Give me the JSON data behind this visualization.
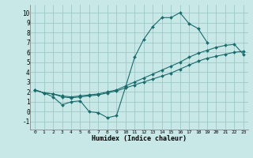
{
  "title": "",
  "xlabel": "Humidex (Indice chaleur)",
  "ylabel": "",
  "xlim": [
    -0.5,
    23.5
  ],
  "ylim": [
    -1.8,
    10.8
  ],
  "xticks": [
    0,
    1,
    2,
    3,
    4,
    5,
    6,
    7,
    8,
    9,
    10,
    11,
    12,
    13,
    14,
    15,
    16,
    17,
    18,
    19,
    20,
    21,
    22,
    23
  ],
  "yticks": [
    -1,
    0,
    1,
    2,
    3,
    4,
    5,
    6,
    7,
    8,
    9,
    10
  ],
  "bg_color": "#c8e8e8",
  "grid_color": "#a0c8c8",
  "line_color": "#1a6b6b",
  "line1_x": [
    0,
    1,
    2,
    3,
    4,
    5,
    6,
    7,
    8,
    9,
    10,
    11,
    12,
    13,
    14,
    15,
    16,
    17,
    18,
    19
  ],
  "line1_y": [
    2.2,
    1.9,
    1.5,
    0.7,
    1.0,
    1.1,
    0.0,
    -0.1,
    -0.6,
    -0.4,
    2.5,
    5.5,
    7.3,
    8.6,
    9.5,
    9.5,
    10.0,
    8.9,
    8.4,
    7.0
  ],
  "line2_x": [
    0,
    1,
    2,
    3,
    4,
    5,
    6,
    7,
    8,
    9,
    10,
    11,
    12,
    13,
    14,
    15,
    16,
    17,
    18,
    19,
    20,
    21,
    22,
    23
  ],
  "line2_y": [
    2.2,
    1.9,
    1.8,
    1.5,
    1.4,
    1.5,
    1.6,
    1.7,
    1.9,
    2.1,
    2.4,
    2.7,
    3.0,
    3.3,
    3.6,
    3.9,
    4.3,
    4.7,
    5.1,
    5.4,
    5.6,
    5.8,
    6.0,
    6.1
  ],
  "line3_x": [
    0,
    1,
    2,
    3,
    4,
    5,
    6,
    7,
    8,
    9,
    10,
    11,
    12,
    13,
    14,
    15,
    16,
    17,
    18,
    19,
    20,
    21,
    22,
    23
  ],
  "line3_y": [
    2.2,
    1.9,
    1.8,
    1.6,
    1.5,
    1.6,
    1.7,
    1.8,
    2.0,
    2.2,
    2.6,
    3.0,
    3.4,
    3.8,
    4.2,
    4.6,
    5.0,
    5.5,
    5.9,
    6.2,
    6.5,
    6.7,
    6.8,
    5.8
  ]
}
